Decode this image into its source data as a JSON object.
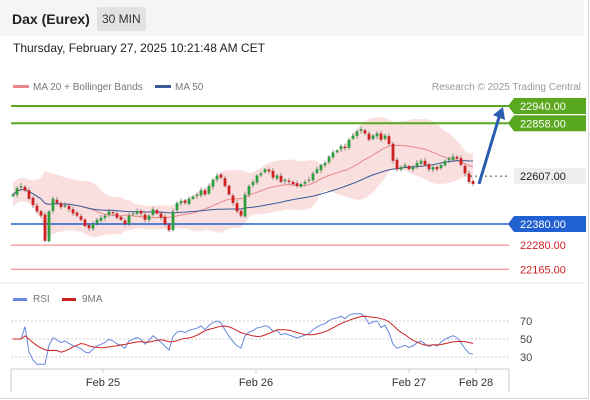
{
  "header": {
    "symbol": "Dax (Eurex)",
    "timeframe": "30 MIN",
    "timestamp": "Thursday, February 27, 2025 10:21:48 AM CET"
  },
  "legend": {
    "ma20": "MA 20 + Bollinger Bands",
    "ma50": "MA 50",
    "credit": "Research © 2025 Trading Central"
  },
  "rsi_legend": {
    "rsi": "RSI",
    "ma9": "9MA"
  },
  "colors": {
    "up": "#2e9e41",
    "down": "#cc2222",
    "ma20": "#e88888",
    "ma50": "#3a5a9a",
    "band": "#f7caca",
    "resistance": "#5aa820",
    "support": "#2060d0",
    "target_arrow": "#2a5db0",
    "rsi": "#6688dd",
    "rsi_ma": "#cc2222"
  },
  "chart_data": [
    {
      "type": "candlestick",
      "title": "",
      "x_ticks": [
        "Feb 25",
        "Feb 26",
        "Feb 27",
        "Feb 28"
      ],
      "price_range": [
        22130,
        23000
      ],
      "levels": [
        {
          "label": "22940.00",
          "value": 22940,
          "kind": "resistance"
        },
        {
          "label": "22858.00",
          "value": 22858,
          "kind": "resistance"
        },
        {
          "label": "22607.00",
          "value": 22607,
          "kind": "current"
        },
        {
          "label": "22380.00",
          "value": 22380,
          "kind": "support"
        },
        {
          "label": "22280.00",
          "value": 22280,
          "kind": "support-minor"
        },
        {
          "label": "22165.00",
          "value": 22165,
          "kind": "support-minor"
        }
      ],
      "series": [
        {
          "name": "MA 20 + Bollinger Bands"
        },
        {
          "name": "MA 50"
        }
      ],
      "close": [
        22520,
        22550,
        22560,
        22540,
        22500,
        22470,
        22440,
        22420,
        22300,
        22440,
        22500,
        22480,
        22460,
        22470,
        22450,
        22430,
        22420,
        22400,
        22370,
        22360,
        22380,
        22400,
        22410,
        22420,
        22440,
        22430,
        22410,
        22400,
        22380,
        22420,
        22430,
        22440,
        22430,
        22400,
        22420,
        22450,
        22430,
        22410,
        22380,
        22350,
        22440,
        22480,
        22490,
        22480,
        22500,
        22510,
        22520,
        22540,
        22520,
        22560,
        22590,
        22610,
        22600,
        22560,
        22520,
        22480,
        22440,
        22420,
        22520,
        22560,
        22580,
        22610,
        22620,
        22640,
        22630,
        22600,
        22610,
        22580,
        22590,
        22580,
        22570,
        22560,
        22570,
        22580,
        22590,
        22620,
        22640,
        22660,
        22670,
        22700,
        22720,
        22730,
        22750,
        22740,
        22780,
        22800,
        22820,
        22830,
        22810,
        22780,
        22800,
        22810,
        22780,
        22800,
        22760,
        22680,
        22640,
        22650,
        22660,
        22640,
        22650,
        22670,
        22680,
        22660,
        22640,
        22650,
        22640,
        22660,
        22680,
        22690,
        22700,
        22690,
        22660,
        22620,
        22580,
        22570
      ]
    },
    {
      "type": "line",
      "title": "",
      "yticks": [
        70,
        50,
        30
      ],
      "ylim": [
        20,
        80
      ],
      "series": [
        {
          "name": "RSI"
        },
        {
          "name": "9MA"
        }
      ]
    }
  ]
}
